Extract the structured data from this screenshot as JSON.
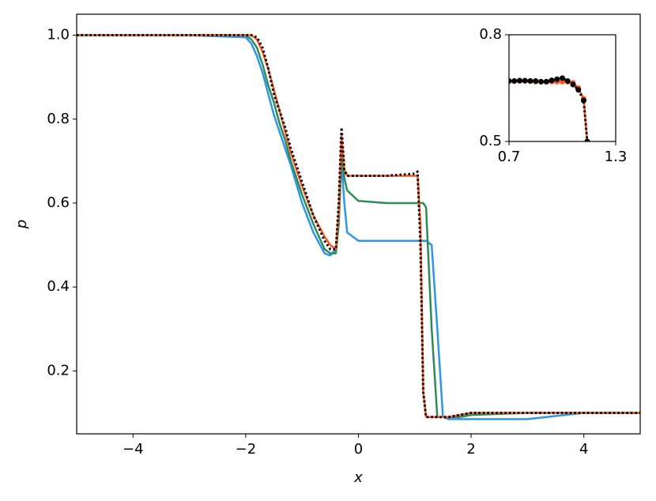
{
  "chart_data": [
    {
      "type": "line",
      "xlabel": "x",
      "ylabel": "p",
      "x": [
        -5,
        -3,
        -2,
        -1.9,
        -1.8,
        -1.7,
        -1.6,
        -1.5,
        -1.4,
        -1.3,
        -1.2,
        -1.0,
        -0.8,
        -0.6,
        -0.5,
        -0.4,
        -0.35,
        -0.3,
        -0.25,
        -0.2,
        0,
        0.5,
        1.0,
        1.05,
        1.1,
        1.15,
        1.2,
        1.3,
        1.4,
        1.5,
        1.6,
        1.8,
        2,
        3,
        4,
        5
      ],
      "series": [
        {
          "color": "#2e96e8",
          "style": "solid",
          "values": [
            1,
            1,
            0.995,
            0.98,
            0.95,
            0.91,
            0.86,
            0.81,
            0.77,
            0.73,
            0.69,
            0.6,
            0.53,
            0.48,
            0.475,
            0.49,
            0.55,
            0.7,
            0.6,
            0.53,
            0.51,
            0.51,
            0.51,
            0.51,
            0.51,
            0.51,
            0.51,
            0.5,
            0.3,
            0.09,
            0.085,
            0.085,
            0.085,
            0.085,
            0.1,
            0.1
          ]
        },
        {
          "color": "#2e8b57",
          "style": "solid",
          "values": [
            1,
            1,
            1,
            0.99,
            0.97,
            0.93,
            0.88,
            0.84,
            0.79,
            0.75,
            0.7,
            0.62,
            0.55,
            0.49,
            0.48,
            0.48,
            0.55,
            0.72,
            0.66,
            0.63,
            0.605,
            0.6,
            0.6,
            0.6,
            0.6,
            0.6,
            0.59,
            0.3,
            0.09,
            0.09,
            0.09,
            0.09,
            0.095,
            0.1,
            0.1,
            0.1
          ]
        },
        {
          "color": "#ff5722",
          "style": "solid",
          "values": [
            1,
            1,
            1,
            1,
            0.99,
            0.96,
            0.92,
            0.87,
            0.82,
            0.77,
            0.72,
            0.64,
            0.57,
            0.52,
            0.5,
            0.49,
            0.58,
            0.76,
            0.68,
            0.665,
            0.665,
            0.665,
            0.665,
            0.665,
            0.55,
            0.15,
            0.09,
            0.09,
            0.09,
            0.09,
            0.09,
            0.095,
            0.1,
            0.1,
            0.1,
            0.1
          ]
        },
        {
          "color": "#000000",
          "style": "dotted",
          "values": [
            1,
            1,
            1,
            1,
            0.995,
            0.97,
            0.92,
            0.86,
            0.82,
            0.78,
            0.73,
            0.65,
            0.57,
            0.51,
            0.49,
            0.49,
            0.6,
            0.78,
            0.68,
            0.665,
            0.665,
            0.665,
            0.67,
            0.675,
            0.5,
            0.15,
            0.09,
            0.09,
            0.09,
            0.09,
            0.09,
            0.095,
            0.1,
            0.1,
            0.1,
            0.1
          ]
        }
      ],
      "xlim": [
        -5,
        5
      ],
      "ylim": [
        0.05,
        1.05
      ],
      "xticks": [
        {
          "value": -4,
          "label": "−4"
        },
        {
          "value": -2,
          "label": "−2"
        },
        0,
        2,
        4
      ],
      "yticks": [
        0.2,
        0.4,
        0.6,
        0.8,
        {
          "value": 1,
          "label": "1.0"
        }
      ]
    },
    {
      "type": "line",
      "x": [
        0.7,
        0.73,
        0.76,
        0.79,
        0.82,
        0.85,
        0.88,
        0.91,
        0.94,
        0.97,
        1.0,
        1.03,
        1.06,
        1.09,
        1.12,
        1.14
      ],
      "series": [
        {
          "color": "#ff5722",
          "style": "solid",
          "marker": "o",
          "values": [
            0.67,
            0.67,
            0.67,
            0.67,
            0.67,
            0.668,
            0.668,
            0.668,
            0.668,
            0.668,
            0.668,
            0.668,
            0.665,
            0.65,
            0.62,
            0.5
          ]
        },
        {
          "color": "#000000",
          "style": "dotted",
          "marker": "o",
          "values": [
            0.67,
            0.67,
            0.671,
            0.671,
            0.67,
            0.67,
            0.668,
            0.668,
            0.672,
            0.675,
            0.678,
            0.67,
            0.66,
            0.645,
            0.615,
            0.5
          ]
        }
      ],
      "xlim": [
        0.7,
        1.3
      ],
      "ylim": [
        0.5,
        0.8
      ],
      "xticks": [
        0.7,
        1.3
      ],
      "yticks": [
        0.5,
        0.8
      ]
    }
  ]
}
